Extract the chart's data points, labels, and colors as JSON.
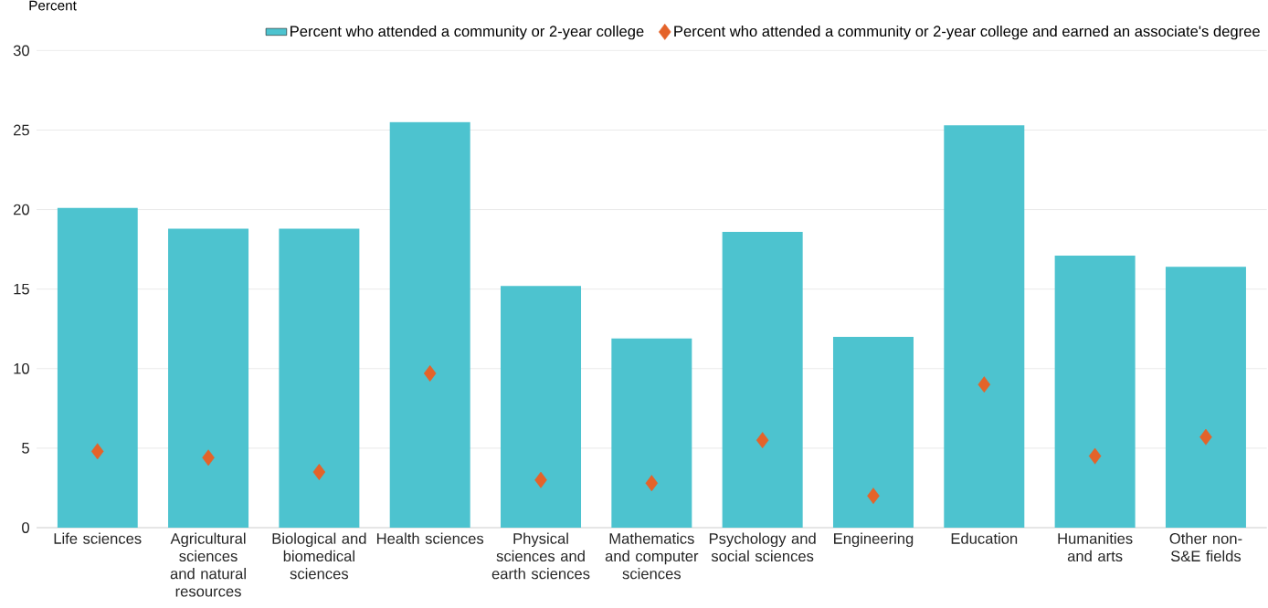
{
  "chart_data": {
    "type": "bar",
    "ylabel": "Percent",
    "categories": [
      "Life sciences",
      "Agricultural sciences and natural resources",
      "Biological and biomedical sciences",
      "Health sciences",
      "Physical sciences and earth sciences",
      "Mathematics and computer sciences",
      "Psychology and social sciences",
      "Engineering",
      "Education",
      "Humanities and arts",
      "Other non-S&E fields"
    ],
    "series": [
      {
        "name": "Percent who attended a community or 2-year college",
        "color": "#4dc3cf",
        "values": [
          20.1,
          18.8,
          18.8,
          25.5,
          15.2,
          11.9,
          18.6,
          12.0,
          25.3,
          17.1,
          16.4
        ]
      },
      {
        "name": "Percent who attended a community or 2-year college and earned an associate's degree",
        "type": "scatter",
        "marker": "diamond",
        "color": "#e4632a",
        "values": [
          4.8,
          4.4,
          3.5,
          9.7,
          3.0,
          2.8,
          5.5,
          2.0,
          9.0,
          4.5,
          5.7
        ]
      }
    ],
    "ylim": [
      0,
      30
    ],
    "yticks": [
      0,
      5,
      10,
      15,
      20,
      25,
      30
    ],
    "grid": "y",
    "legend": "top right"
  }
}
